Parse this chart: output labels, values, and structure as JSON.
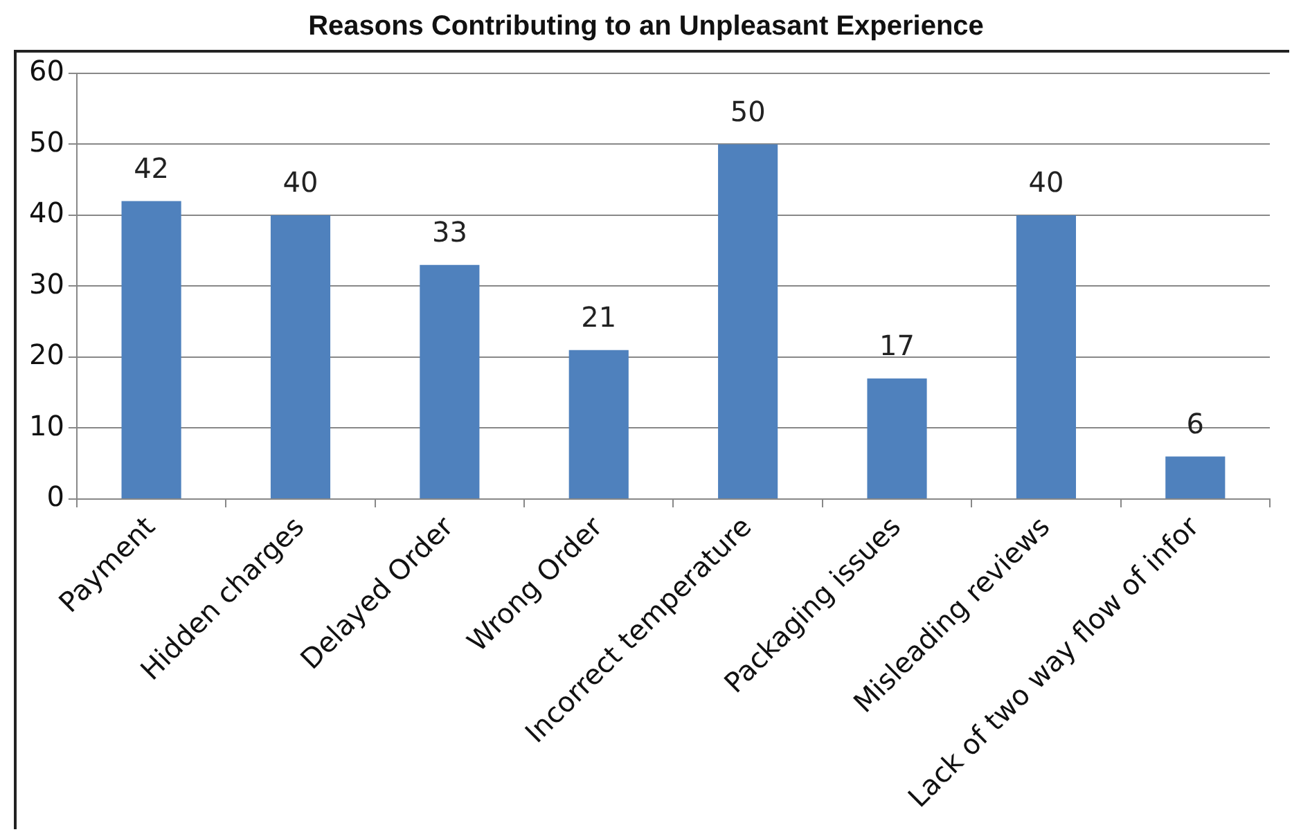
{
  "chart_data": {
    "type": "bar",
    "title": "Reasons Contributing to an Unpleasant Experience",
    "categories": [
      "Payment",
      "Hidden charges",
      "Delayed Order",
      "Wrong Order",
      "Incorrect temperature",
      "Packaging issues",
      "Misleading reviews",
      "Lack of two way flow of infor"
    ],
    "values": [
      42,
      40,
      33,
      21,
      50,
      17,
      40,
      6
    ],
    "color": "#4f81bd",
    "ylim": [
      0,
      60
    ],
    "yticks": [
      0,
      10,
      20,
      30,
      40,
      50,
      60
    ],
    "grid": "y",
    "data_labels": true
  }
}
